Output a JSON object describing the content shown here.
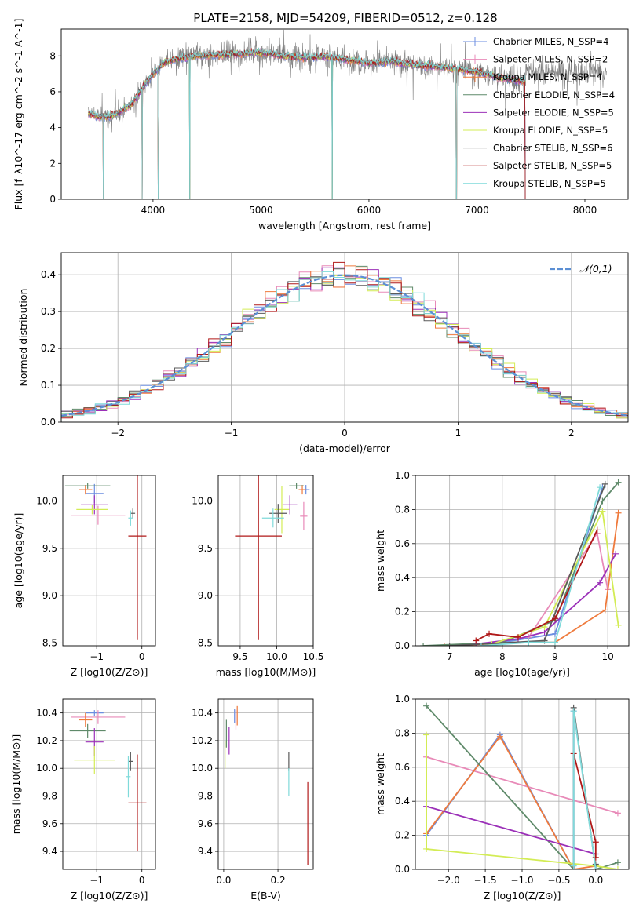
{
  "figure_title": "PLATE=2158, MJD=54209, FIBERID=0512, z=0.128",
  "colors": {
    "chabrier_miles": "#6b8ee0",
    "salpeter_miles": "#e88ab8",
    "kroupa_miles": "#ef7a3c",
    "chabrier_elodie": "#5f8a6a",
    "salpeter_elodie": "#9b30b8",
    "kroupa_elodie": "#d3ec55",
    "chabrier_stelib": "#5a5a5a",
    "salpeter_stelib": "#b01818",
    "kroupa_stelib": "#7fdada",
    "gaussian": "#5b8fd4",
    "grid": "#b0b0b0"
  },
  "chart_data": [
    {
      "id": "spectrum",
      "type": "line",
      "title": "PLATE=2158, MJD=54209, FIBERID=0512, z=0.128",
      "xlabel": "wavelength [Angstrom, rest frame]",
      "ylabel": "Flux [f_λ10^-17 erg cm^-2 s^-1 A^-1]",
      "xlim": [
        3150,
        8400
      ],
      "ylim": [
        0,
        9.5
      ],
      "xticks": [
        "4000",
        "5000",
        "6000",
        "7000",
        "8000"
      ],
      "yticks": [
        "0",
        "2",
        "4",
        "6",
        "8"
      ],
      "grid": false,
      "legend_position": "top-right",
      "legend": [
        "Chabrier MILES, N_SSP=4",
        "Salpeter MILES, N_SSP=2",
        "Kroupa MILES, N_SSP=4",
        "Chabrier ELODIE, N_SSP=4",
        "Salpeter ELODIE, N_SSP=5",
        "Kroupa ELODIE, N_SSP=5",
        "Chabrier STELIB, N_SSP=6",
        "Salpeter STELIB, N_SSP=5",
        "Kroupa STELIB, N_SSP=5"
      ],
      "continuum": {
        "x": [
          3400,
          3500,
          3600,
          3700,
          3800,
          3900,
          4000,
          4100,
          4200,
          4400,
          4600,
          4800,
          5000,
          5200,
          5400,
          5600,
          5800,
          6000,
          6200,
          6400,
          6600,
          6800,
          7000,
          7200,
          7400
        ],
        "y": [
          4.8,
          4.6,
          4.6,
          4.9,
          5.3,
          6.2,
          7.0,
          7.6,
          7.8,
          8.0,
          8.05,
          8.1,
          8.2,
          8.0,
          7.9,
          7.95,
          7.8,
          7.6,
          7.7,
          7.5,
          7.4,
          7.3,
          7.1,
          6.8,
          6.6
        ]
      },
      "data_range": [
        3400,
        8200
      ],
      "models_range": [
        3400,
        7450
      ],
      "drops": [
        3540,
        3900,
        4050,
        4340,
        5660,
        6810,
        7450
      ]
    },
    {
      "id": "residuals",
      "type": "histogram",
      "xlabel": "(data-model)/error",
      "ylabel": "Normed distribution",
      "xlim": [
        -2.5,
        2.5
      ],
      "ylim": [
        0,
        0.46
      ],
      "xticks": [
        "−2",
        "−1",
        "0",
        "1",
        "2"
      ],
      "yticks": [
        "0.0",
        "0.1",
        "0.2",
        "0.3",
        "0.4"
      ],
      "grid": true,
      "legend_position": "top-right",
      "legend": [
        "𝒩(0,1)"
      ],
      "bin_width": 0.1
    },
    {
      "id": "age_vs_Z",
      "type": "errorbar",
      "xlabel": "Z [log10(Z/Z⊙)]",
      "ylabel": "age  [log10(age/yr)]",
      "xlim": [
        -1.75,
        0.3
      ],
      "ylim": [
        8.47,
        10.27
      ],
      "xticks": [
        "−1",
        "0"
      ],
      "yticks": [
        "8.5",
        "9.0",
        "9.5",
        "10.0"
      ],
      "grid": true,
      "points": [
        {
          "model": "chabrier_miles",
          "x": -1.05,
          "xerr": 0.2,
          "y": 10.08,
          "yerr": 0.1
        },
        {
          "model": "salpeter_miles",
          "x": -0.97,
          "xerr": 0.6,
          "y": 9.85,
          "yerr": 0.1
        },
        {
          "model": "kroupa_miles",
          "x": -1.25,
          "xerr": 0.15,
          "y": 10.12,
          "yerr": 0.05
        },
        {
          "model": "chabrier_elodie",
          "x": -1.2,
          "xerr": 0.5,
          "y": 10.16,
          "yerr": 0.03
        },
        {
          "model": "salpeter_elodie",
          "x": -1.05,
          "xerr": 0.3,
          "y": 9.96,
          "yerr": 0.1
        },
        {
          "model": "kroupa_elodie",
          "x": -1.1,
          "xerr": 0.35,
          "y": 9.91,
          "yerr": 0.05
        },
        {
          "model": "chabrier_stelib",
          "x": -0.2,
          "xerr": 0.05,
          "y": 9.87,
          "yerr": 0.05
        },
        {
          "model": "salpeter_stelib",
          "x": -0.1,
          "xerr": 0.2,
          "y": 9.63,
          "yerr": 1.1
        },
        {
          "model": "kroupa_stelib",
          "x": -0.25,
          "xerr": 0.05,
          "y": 9.82,
          "yerr": 0.08
        }
      ]
    },
    {
      "id": "age_vs_mass",
      "type": "errorbar",
      "xlabel": "mass [log10(M/M⊙)]",
      "ylabel": "",
      "xlim": [
        9.2,
        10.5
      ],
      "ylim": [
        8.47,
        10.27
      ],
      "xticks": [
        "9.5",
        "10.0",
        "10.5"
      ],
      "yticks": [
        "8.5",
        "9.0",
        "9.5",
        "10.0"
      ],
      "grid": true,
      "points": [
        {
          "model": "chabrier_miles",
          "x": 10.4,
          "xerr": 0.05,
          "y": 10.12,
          "yerr": 0.05
        },
        {
          "model": "salpeter_miles",
          "x": 10.37,
          "xerr": 0.05,
          "y": 9.84,
          "yerr": 0.15
        },
        {
          "model": "kroupa_miles",
          "x": 10.35,
          "xerr": 0.05,
          "y": 10.12,
          "yerr": 0.05
        },
        {
          "model": "chabrier_elodie",
          "x": 10.27,
          "xerr": 0.1,
          "y": 10.16,
          "yerr": 0.03
        },
        {
          "model": "salpeter_elodie",
          "x": 10.18,
          "xerr": 0.1,
          "y": 9.96,
          "yerr": 0.1
        },
        {
          "model": "kroupa_elodie",
          "x": 10.07,
          "xerr": 0.1,
          "y": 9.91,
          "yerr": 0.25
        },
        {
          "model": "chabrier_stelib",
          "x": 10.02,
          "xerr": 0.12,
          "y": 9.87,
          "yerr": 0.1
        },
        {
          "model": "salpeter_stelib",
          "x": 9.75,
          "xerr": 0.32,
          "y": 9.63,
          "yerr": 1.1
        },
        {
          "model": "kroupa_stelib",
          "x": 9.95,
          "xerr": 0.15,
          "y": 9.82,
          "yerr": 0.1
        }
      ]
    },
    {
      "id": "mass_weight_vs_age",
      "type": "line",
      "xlabel": "age  [log10(age/yr)]",
      "ylabel": "mass weight",
      "xlim": [
        6.35,
        10.4
      ],
      "ylim": [
        0,
        1
      ],
      "xticks": [
        "7",
        "8",
        "9",
        "10"
      ],
      "yticks": [
        "0.0",
        "0.2",
        "0.4",
        "0.6",
        "0.8",
        "1.0"
      ],
      "grid": true,
      "series": [
        {
          "model": "chabrier_miles",
          "x": [
            6.9,
            8.0,
            9.0,
            9.9
          ],
          "y": [
            0.0,
            0.02,
            0.07,
            0.93
          ]
        },
        {
          "model": "salpeter_miles",
          "x": [
            8.5,
            9.8,
            10.0
          ],
          "y": [
            0.05,
            0.66,
            0.33
          ]
        },
        {
          "model": "kroupa_miles",
          "x": [
            6.9,
            8.5,
            9.0,
            9.95,
            10.2
          ],
          "y": [
            0.0,
            0.02,
            0.02,
            0.21,
            0.78
          ]
        },
        {
          "model": "chabrier_elodie",
          "x": [
            6.5,
            8.0,
            9.0,
            9.9,
            10.2
          ],
          "y": [
            0.0,
            0.02,
            0.15,
            0.85,
            0.96
          ]
        },
        {
          "model": "salpeter_elodie",
          "x": [
            7.5,
            8.3,
            8.8,
            9.85,
            10.15
          ],
          "y": [
            0.01,
            0.04,
            0.08,
            0.37,
            0.54
          ]
        },
        {
          "model": "kroupa_elodie",
          "x": [
            7.8,
            8.8,
            9.9,
            10.2
          ],
          "y": [
            0.01,
            0.11,
            0.79,
            0.12
          ]
        },
        {
          "model": "chabrier_stelib",
          "x": [
            7.0,
            8.8,
            9.95
          ],
          "y": [
            0.0,
            0.03,
            0.95
          ]
        },
        {
          "model": "salpeter_stelib",
          "x": [
            7.5,
            7.75,
            8.3,
            9.0,
            9.8
          ],
          "y": [
            0.03,
            0.07,
            0.05,
            0.16,
            0.68
          ]
        },
        {
          "model": "kroupa_stelib",
          "x": [
            7.6,
            8.5,
            9.0,
            9.85
          ],
          "y": [
            0.0,
            0.02,
            0.02,
            0.93
          ]
        }
      ]
    },
    {
      "id": "mass_vs_Z",
      "type": "errorbar",
      "xlabel": "Z [log10(Z/Z⊙)]",
      "ylabel": "mass [log10(M/M⊙)]",
      "xlim": [
        -1.75,
        0.3
      ],
      "ylim": [
        9.27,
        10.5
      ],
      "xticks": [
        "−1",
        "0"
      ],
      "yticks": [
        "9.4",
        "9.6",
        "9.8",
        "10.0",
        "10.2",
        "10.4"
      ],
      "grid": true,
      "points": [
        {
          "model": "chabrier_miles",
          "x": -1.05,
          "xerr": 0.2,
          "y": 10.4,
          "yerr": 0.02
        },
        {
          "model": "salpeter_miles",
          "x": -0.97,
          "xerr": 0.6,
          "y": 10.37,
          "yerr": 0.05
        },
        {
          "model": "kroupa_miles",
          "x": -1.25,
          "xerr": 0.15,
          "y": 10.35,
          "yerr": 0.05
        },
        {
          "model": "chabrier_elodie",
          "x": -1.2,
          "xerr": 0.4,
          "y": 10.27,
          "yerr": 0.05
        },
        {
          "model": "salpeter_elodie",
          "x": -1.05,
          "xerr": 0.2,
          "y": 10.19,
          "yerr": 0.1
        },
        {
          "model": "kroupa_elodie",
          "x": -1.05,
          "xerr": 0.45,
          "y": 10.06,
          "yerr": 0.1
        },
        {
          "model": "chabrier_stelib",
          "x": -0.25,
          "xerr": 0.05,
          "y": 10.05,
          "yerr": 0.07
        },
        {
          "model": "salpeter_stelib",
          "x": -0.1,
          "xerr": 0.2,
          "y": 9.75,
          "yerr": 0.35
        },
        {
          "model": "kroupa_stelib",
          "x": -0.3,
          "xerr": 0.05,
          "y": 9.94,
          "yerr": 0.15
        }
      ]
    },
    {
      "id": "mass_vs_EBV",
      "type": "errorbar",
      "xlabel": "E(B-V)",
      "ylabel": "",
      "xlim": [
        -0.02,
        0.33
      ],
      "ylim": [
        9.27,
        10.5
      ],
      "xticks": [
        "0.0",
        "0.2"
      ],
      "yticks": [
        "9.4",
        "9.6",
        "9.8",
        "10.0",
        "10.2",
        "10.4"
      ],
      "grid": true,
      "points": [
        {
          "model": "chabrier_miles",
          "x": 0.04,
          "xerr": 0,
          "y": 10.38,
          "yerr": 0.05
        },
        {
          "model": "salpeter_miles",
          "x": 0.045,
          "xerr": 0,
          "y": 10.35,
          "yerr": 0.07
        },
        {
          "model": "kroupa_miles",
          "x": 0.05,
          "xerr": 0,
          "y": 10.38,
          "yerr": 0.07
        },
        {
          "model": "chabrier_elodie",
          "x": 0.01,
          "xerr": 0,
          "y": 10.25,
          "yerr": 0.1
        },
        {
          "model": "salpeter_elodie",
          "x": 0.02,
          "xerr": 0,
          "y": 10.2,
          "yerr": 0.1
        },
        {
          "model": "kroupa_elodie",
          "x": 0.005,
          "xerr": 0,
          "y": 10.1,
          "yerr": 0.1
        },
        {
          "model": "chabrier_stelib",
          "x": 0.24,
          "xerr": 0,
          "y": 10.05,
          "yerr": 0.07
        },
        {
          "model": "salpeter_stelib",
          "x": 0.31,
          "xerr": 0,
          "y": 9.6,
          "yerr": 0.3
        },
        {
          "model": "kroupa_stelib",
          "x": 0.24,
          "xerr": 0,
          "y": 9.9,
          "yerr": 0.1
        }
      ]
    },
    {
      "id": "mass_weight_vs_Z",
      "type": "line",
      "xlabel": "Z [log10(Z/Z⊙)]",
      "ylabel": "mass weight",
      "xlim": [
        -2.45,
        0.45
      ],
      "ylim": [
        0,
        1
      ],
      "xticks": [
        "−2.0",
        "−1.5",
        "−1.0",
        "−0.5",
        "0.0"
      ],
      "yticks": [
        "0.0",
        "0.2",
        "0.4",
        "0.6",
        "0.8",
        "1.0"
      ],
      "grid": true,
      "series": [
        {
          "model": "chabrier_miles",
          "x": [
            -2.3,
            -1.3,
            -0.3,
            -0.3
          ],
          "y": [
            0.2,
            0.79,
            0.0,
            0.93
          ]
        },
        {
          "model": "salpeter_miles",
          "x": [
            -2.3,
            0.3
          ],
          "y": [
            0.66,
            0.33
          ]
        },
        {
          "model": "kroupa_miles",
          "x": [
            -2.3,
            -1.3,
            -0.3,
            0.0
          ],
          "y": [
            0.21,
            0.78,
            0.0,
            0.02
          ]
        },
        {
          "model": "chabrier_elodie",
          "x": [
            -2.3,
            -0.3,
            0.0,
            0.3
          ],
          "y": [
            0.96,
            0.0,
            0.0,
            0.04
          ]
        },
        {
          "model": "salpeter_elodie",
          "x": [
            -2.3,
            0.0
          ],
          "y": [
            0.37,
            0.09
          ]
        },
        {
          "model": "kroupa_elodie",
          "x": [
            -2.3,
            -2.3,
            0.0,
            0.3
          ],
          "y": [
            0.79,
            0.12,
            0.02,
            0.0
          ]
        },
        {
          "model": "chabrier_stelib",
          "x": [
            -0.3,
            -0.3,
            0.0,
            0.0
          ],
          "y": [
            0.0,
            0.95,
            0.0,
            0.03
          ]
        },
        {
          "model": "salpeter_stelib",
          "x": [
            -0.3,
            0.0,
            0.0
          ],
          "y": [
            0.68,
            0.16,
            0.07
          ]
        },
        {
          "model": "kroupa_stelib",
          "x": [
            -0.3,
            -0.3,
            0.0
          ],
          "y": [
            0.02,
            0.93,
            0.0
          ]
        }
      ]
    }
  ]
}
